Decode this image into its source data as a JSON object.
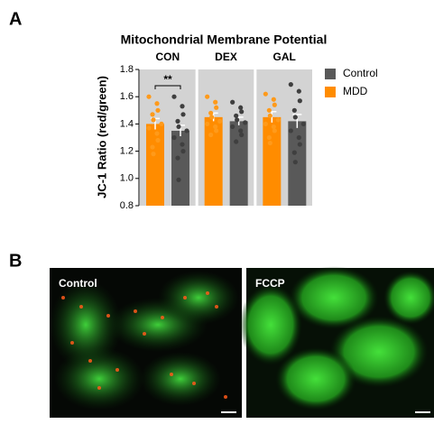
{
  "panel_a_label": "A",
  "chart_data": {
    "type": "bar",
    "title": "Mitochondrial  Membrane Potential",
    "y_label": "JC-1 Ratio (red/green)",
    "categories": [
      "CON",
      "DEX",
      "GAL"
    ],
    "series": [
      {
        "name": "MDD",
        "color": "#ff8c00",
        "values": [
          1.4,
          1.45,
          1.45
        ],
        "errors": [
          0.04,
          0.03,
          0.04
        ],
        "points": [
          [
            1.6,
            1.55,
            1.5,
            1.47,
            1.43,
            1.4,
            1.37,
            1.33,
            1.28,
            1.23,
            1.18
          ],
          [
            1.6,
            1.56,
            1.52,
            1.48,
            1.45,
            1.42,
            1.4,
            1.38,
            1.35,
            1.32
          ],
          [
            1.62,
            1.58,
            1.54,
            1.5,
            1.46,
            1.43,
            1.4,
            1.38,
            1.35,
            1.3,
            1.26
          ]
        ]
      },
      {
        "name": "Control",
        "color": "#595959",
        "values": [
          1.35,
          1.42,
          1.42
        ],
        "errors": [
          0.04,
          0.03,
          0.05
        ],
        "points": [
          [
            1.6,
            1.53,
            1.47,
            1.42,
            1.38,
            1.35,
            1.3,
            1.25,
            1.2,
            1.15,
            0.99
          ],
          [
            1.56,
            1.52,
            1.49,
            1.46,
            1.43,
            1.41,
            1.38,
            1.35,
            1.32,
            1.27
          ],
          [
            1.69,
            1.64,
            1.57,
            1.5,
            1.45,
            1.4,
            1.35,
            1.3,
            1.25,
            1.19,
            1.12
          ]
        ]
      }
    ],
    "ylim": [
      0.8,
      1.8
    ],
    "yticks": [
      0.8,
      {
        "value": 1.0,
        "label": "1.0"
      },
      1.2,
      1.4,
      1.6,
      1.8
    ],
    "significance": "**"
  },
  "panel_b_label": "B",
  "images": [
    {
      "label": "Control"
    },
    {
      "label": "FCCP"
    }
  ]
}
